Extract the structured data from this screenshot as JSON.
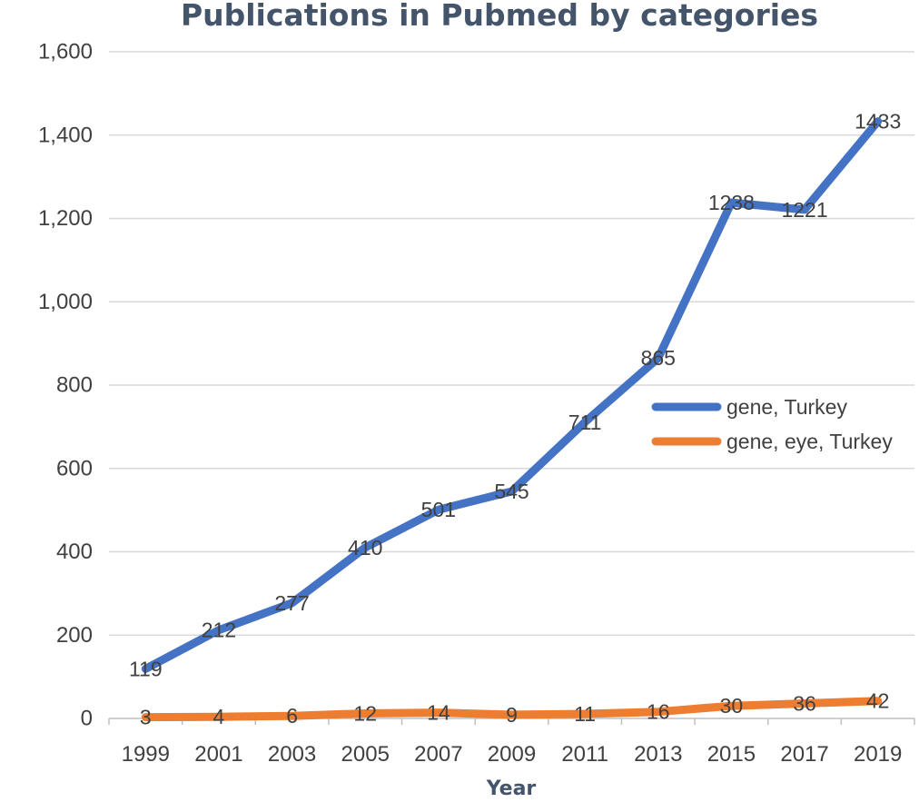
{
  "chart_data": {
    "type": "line",
    "title": "Publications in Pubmed by categories",
    "xlabel": "Year",
    "ylabel": "",
    "categories": [
      "1999",
      "2001",
      "2003",
      "2005",
      "2007",
      "2009",
      "2011",
      "2013",
      "2015",
      "2017",
      "2019"
    ],
    "ylim": [
      0,
      1600
    ],
    "yticks": [
      0,
      200,
      400,
      600,
      800,
      1000,
      1200,
      1400,
      1600
    ],
    "ytick_labels": [
      "0",
      "200",
      "400",
      "600",
      "800",
      "1,000",
      "1,200",
      "1,400",
      "1,600"
    ],
    "grid": true,
    "legend_position": "right",
    "series": [
      {
        "name": "gene, Turkey",
        "color": "#4472C4",
        "values": [
          119,
          212,
          277,
          410,
          501,
          545,
          711,
          865,
          1238,
          1221,
          1433
        ]
      },
      {
        "name": "gene, eye, Turkey",
        "color": "#ED7D31",
        "values": [
          3,
          4,
          6,
          12,
          14,
          9,
          11,
          16,
          30,
          36,
          42
        ]
      }
    ]
  }
}
